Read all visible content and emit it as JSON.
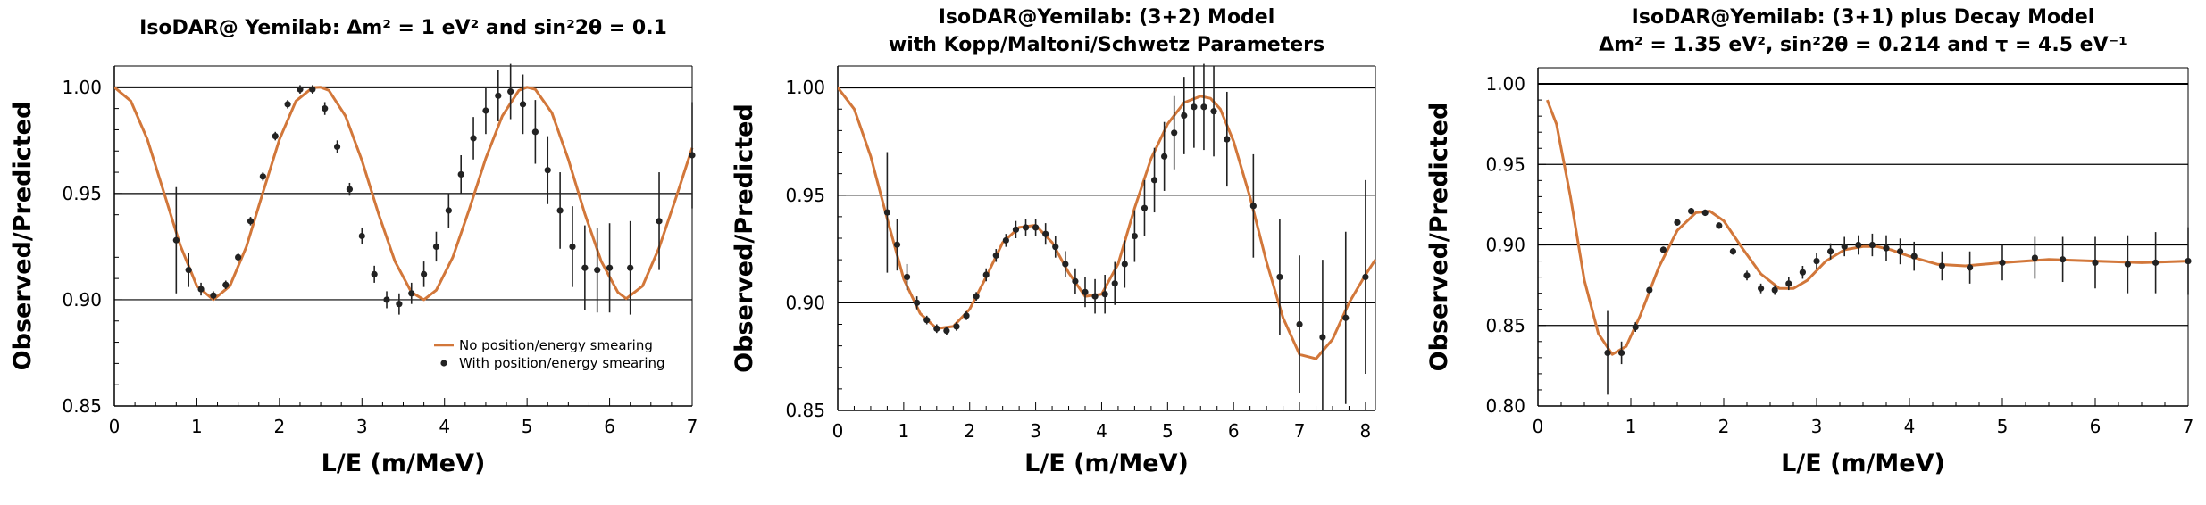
{
  "colors": {
    "curve": "#d2773a",
    "points": "#222222",
    "axis": "#000000",
    "grid": "#000000"
  },
  "chart_data": [
    {
      "type": "line",
      "title_lines": [
        "IsoDAR@ Yemilab:  Δm² = 1 eV² and sin²2θ = 0.1"
      ],
      "xlabel": "L/E (m/MeV)",
      "ylabel": "Observed/Predicted",
      "xlim": [
        0,
        7
      ],
      "ylim": [
        0.85,
        1.01
      ],
      "xticks": [
        0,
        1,
        2,
        3,
        4,
        5,
        6,
        7
      ],
      "yticks": [
        0.85,
        0.9,
        0.95,
        1.0
      ],
      "ytick_labels": [
        "0.85",
        "0.90",
        "0.95",
        "1.00"
      ],
      "grid_y": [
        0.9,
        0.95,
        1.0
      ],
      "legend": {
        "position": "lower-right",
        "entries": [
          "No position/energy smearing",
          "With position/energy smearing"
        ]
      },
      "series": [
        {
          "name": "No position/energy smearing",
          "kind": "line",
          "x": [
            0,
            0.2,
            0.4,
            0.6,
            0.8,
            1.0,
            1.2,
            1.4,
            1.6,
            1.8,
            2.0,
            2.2,
            2.4,
            2.5,
            2.6,
            2.8,
            3.0,
            3.2,
            3.4,
            3.6,
            3.75,
            3.9,
            4.1,
            4.3,
            4.5,
            4.7,
            4.9,
            5.0,
            5.1,
            5.3,
            5.5,
            5.7,
            5.9,
            6.1,
            6.2,
            6.4,
            6.6,
            6.8,
            7.0
          ],
          "y": [
            1.0,
            0.9935,
            0.9755,
            0.9505,
            0.9255,
            0.9065,
            0.9,
            0.9065,
            0.925,
            0.9505,
            0.9755,
            0.9935,
            0.9998,
            1.0,
            0.9985,
            0.9865,
            0.9655,
            0.9405,
            0.918,
            0.9035,
            0.9,
            0.9045,
            0.92,
            0.9425,
            0.9665,
            0.9865,
            0.9985,
            1.0,
            0.999,
            0.988,
            0.966,
            0.9405,
            0.918,
            0.9035,
            0.9005,
            0.9065,
            0.9245,
            0.9475,
            0.9715
          ]
        },
        {
          "name": "With position/energy smearing",
          "kind": "points",
          "x": [
            0.75,
            0.9,
            1.05,
            1.2,
            1.35,
            1.5,
            1.65,
            1.8,
            1.95,
            2.1,
            2.25,
            2.4,
            2.55,
            2.7,
            2.85,
            3.0,
            3.15,
            3.3,
            3.45,
            3.6,
            3.75,
            3.9,
            4.05,
            4.2,
            4.35,
            4.5,
            4.65,
            4.8,
            4.95,
            5.1,
            5.25,
            5.4,
            5.55,
            5.7,
            5.85,
            6.0,
            6.25,
            6.6,
            7.0
          ],
          "y": [
            0.928,
            0.914,
            0.905,
            0.902,
            0.907,
            0.92,
            0.937,
            0.958,
            0.977,
            0.992,
            0.999,
            0.999,
            0.99,
            0.972,
            0.952,
            0.93,
            0.912,
            0.9,
            0.898,
            0.903,
            0.912,
            0.925,
            0.942,
            0.959,
            0.976,
            0.989,
            0.996,
            0.998,
            0.992,
            0.979,
            0.961,
            0.942,
            0.925,
            0.915,
            0.914,
            0.915,
            0.915,
            0.937,
            0.968
          ],
          "err": [
            0.025,
            0.008,
            0.003,
            0.002,
            0.002,
            0.002,
            0.002,
            0.002,
            0.002,
            0.002,
            0.002,
            0.002,
            0.003,
            0.003,
            0.003,
            0.004,
            0.004,
            0.004,
            0.005,
            0.005,
            0.006,
            0.007,
            0.008,
            0.009,
            0.01,
            0.011,
            0.012,
            0.013,
            0.014,
            0.015,
            0.016,
            0.018,
            0.019,
            0.02,
            0.02,
            0.021,
            0.022,
            0.023,
            0.025
          ]
        }
      ]
    },
    {
      "type": "line",
      "title_lines": [
        "IsoDAR@Yemilab: (3+2) Model",
        "with Kopp/Maltoni/Schwetz Parameters"
      ],
      "xlabel": "L/E (m/MeV)",
      "ylabel": "Observed/Predicted",
      "xlim": [
        0,
        8.15
      ],
      "ylim": [
        0.85,
        1.01
      ],
      "xticks": [
        0,
        1,
        2,
        3,
        4,
        5,
        6,
        7,
        8
      ],
      "yticks": [
        0.85,
        0.9,
        0.95,
        1.0
      ],
      "ytick_labels": [
        "0.85",
        "0.90",
        "0.95",
        "1.00"
      ],
      "grid_y": [
        0.9,
        0.95,
        1.0
      ],
      "series": [
        {
          "kind": "line",
          "x": [
            0,
            0.25,
            0.5,
            0.75,
            1.0,
            1.25,
            1.5,
            1.75,
            2.0,
            2.25,
            2.5,
            2.75,
            3.0,
            3.25,
            3.5,
            3.75,
            4.0,
            4.25,
            4.5,
            4.75,
            5.0,
            5.25,
            5.5,
            5.65,
            5.8,
            6.0,
            6.25,
            6.5,
            6.75,
            7.0,
            7.25,
            7.5,
            7.75,
            8.0,
            8.15
          ],
          "y": [
            1.0,
            0.99,
            0.968,
            0.939,
            0.911,
            0.895,
            0.888,
            0.889,
            0.897,
            0.912,
            0.928,
            0.935,
            0.936,
            0.928,
            0.914,
            0.903,
            0.904,
            0.918,
            0.944,
            0.967,
            0.983,
            0.993,
            0.996,
            0.995,
            0.99,
            0.975,
            0.949,
            0.919,
            0.893,
            0.876,
            0.874,
            0.883,
            0.9,
            0.913,
            0.92
          ]
        },
        {
          "kind": "points",
          "x": [
            0.75,
            0.9,
            1.05,
            1.2,
            1.35,
            1.5,
            1.65,
            1.8,
            1.95,
            2.1,
            2.25,
            2.4,
            2.55,
            2.7,
            2.85,
            3.0,
            3.15,
            3.3,
            3.45,
            3.6,
            3.75,
            3.9,
            4.05,
            4.2,
            4.35,
            4.5,
            4.65,
            4.8,
            4.95,
            5.1,
            5.25,
            5.4,
            5.55,
            5.7,
            5.9,
            6.3,
            6.7,
            7.0,
            7.35,
            7.7,
            8.0
          ],
          "y": [
            0.942,
            0.927,
            0.912,
            0.9,
            0.892,
            0.888,
            0.887,
            0.889,
            0.894,
            0.903,
            0.913,
            0.922,
            0.929,
            0.934,
            0.935,
            0.935,
            0.932,
            0.926,
            0.918,
            0.91,
            0.905,
            0.903,
            0.904,
            0.909,
            0.918,
            0.931,
            0.944,
            0.957,
            0.968,
            0.979,
            0.987,
            0.991,
            0.991,
            0.989,
            0.976,
            0.945,
            0.912,
            0.89,
            0.884,
            0.893,
            0.912
          ],
          "err": [
            0.028,
            0.012,
            0.006,
            0.003,
            0.002,
            0.002,
            0.002,
            0.002,
            0.002,
            0.002,
            0.003,
            0.003,
            0.003,
            0.004,
            0.004,
            0.004,
            0.005,
            0.005,
            0.006,
            0.006,
            0.007,
            0.008,
            0.009,
            0.01,
            0.011,
            0.012,
            0.013,
            0.015,
            0.016,
            0.017,
            0.018,
            0.019,
            0.02,
            0.021,
            0.022,
            0.024,
            0.027,
            0.032,
            0.036,
            0.04,
            0.045
          ]
        }
      ]
    },
    {
      "type": "line",
      "title_lines": [
        "IsoDAR@Yemilab:  (3+1) plus Decay Model",
        "Δm² = 1.35 eV², sin²2θ = 0.214 and τ = 4.5 eV⁻¹"
      ],
      "xlabel": "L/E (m/MeV)",
      "ylabel": "Observed/Predicted",
      "xlim": [
        0,
        7
      ],
      "ylim": [
        0.8,
        1.01
      ],
      "xticks": [
        0,
        1,
        2,
        3,
        4,
        5,
        6,
        7
      ],
      "yticks": [
        0.8,
        0.85,
        0.9,
        0.95,
        1.0
      ],
      "ytick_labels": [
        "0.80",
        "0.85",
        "0.90",
        "0.95",
        "1.00"
      ],
      "grid_y": [
        0.85,
        0.9,
        0.95,
        1.0
      ],
      "series": [
        {
          "kind": "line",
          "x": [
            0.1,
            0.2,
            0.35,
            0.5,
            0.65,
            0.8,
            0.95,
            1.1,
            1.3,
            1.5,
            1.7,
            1.85,
            2.0,
            2.2,
            2.4,
            2.6,
            2.75,
            2.9,
            3.1,
            3.3,
            3.5,
            3.65,
            3.8,
            4.0,
            4.3,
            4.6,
            5.0,
            5.5,
            6.0,
            6.5,
            7.0
          ],
          "y": [
            0.99,
            0.975,
            0.93,
            0.878,
            0.845,
            0.832,
            0.837,
            0.856,
            0.886,
            0.909,
            0.92,
            0.921,
            0.915,
            0.898,
            0.882,
            0.873,
            0.873,
            0.878,
            0.89,
            0.897,
            0.899,
            0.899,
            0.897,
            0.893,
            0.888,
            0.887,
            0.889,
            0.891,
            0.89,
            0.889,
            0.89
          ]
        },
        {
          "kind": "points",
          "x": [
            0.75,
            0.9,
            1.05,
            1.2,
            1.35,
            1.5,
            1.65,
            1.8,
            1.95,
            2.1,
            2.25,
            2.4,
            2.55,
            2.7,
            2.85,
            3.0,
            3.15,
            3.3,
            3.45,
            3.6,
            3.75,
            3.9,
            4.05,
            4.35,
            4.65,
            5.0,
            5.35,
            5.65,
            6.0,
            6.35,
            6.65,
            7.0
          ],
          "y": [
            0.833,
            0.833,
            0.849,
            0.872,
            0.897,
            0.914,
            0.921,
            0.92,
            0.912,
            0.896,
            0.881,
            0.873,
            0.872,
            0.876,
            0.883,
            0.89,
            0.896,
            0.899,
            0.9,
            0.9,
            0.898,
            0.896,
            0.893,
            0.887,
            0.886,
            0.889,
            0.892,
            0.891,
            0.889,
            0.888,
            0.889,
            0.89
          ],
          "err": [
            0.026,
            0.007,
            0.003,
            0.002,
            0.002,
            0.002,
            0.002,
            0.002,
            0.002,
            0.002,
            0.003,
            0.003,
            0.003,
            0.004,
            0.004,
            0.005,
            0.005,
            0.006,
            0.006,
            0.007,
            0.008,
            0.008,
            0.009,
            0.009,
            0.01,
            0.011,
            0.013,
            0.014,
            0.016,
            0.018,
            0.019,
            0.021
          ]
        }
      ]
    }
  ]
}
